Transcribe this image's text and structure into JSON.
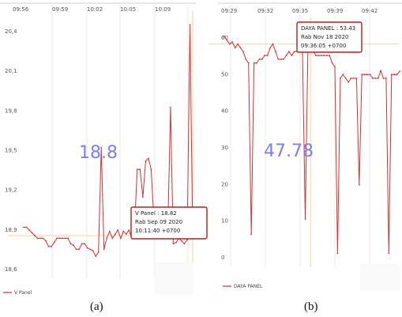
{
  "chart_data": [
    {
      "id": "a",
      "type": "line",
      "caption": "(a)",
      "x_ticks": [
        "09:56",
        "09:59",
        "10:02",
        "10:05",
        "10:09"
      ],
      "y_ticks": [
        "20,4",
        "20,1",
        "19,8",
        "19,5",
        "19,2",
        "18,9",
        "18,6"
      ],
      "ylim": [
        18.55,
        20.45
      ],
      "center_value": "18.8",
      "tooltip": [
        "V Panel : 18.82",
        "Rab Sep 09 2020",
        "10:11:40 +0700"
      ],
      "legend": "V Panel",
      "line_color": "#d93030",
      "series": [
        {
          "values": [
            18.88,
            18.88,
            18.86,
            18.84,
            18.82,
            18.8,
            18.8,
            18.8,
            18.78,
            18.74,
            18.74,
            18.77,
            18.8,
            18.8,
            18.8,
            18.8,
            18.8,
            18.76,
            18.75,
            18.72,
            18.72,
            18.76,
            18.76,
            18.73,
            18.72,
            18.71,
            18.67,
            18.7,
            19.46,
            18.72,
            18.8,
            18.85,
            18.8,
            18.83,
            18.86,
            18.8,
            18.85,
            18.83,
            18.86,
            18.8,
            18.88,
            19.3,
            19.3,
            19.1,
            19.36,
            19.38,
            19.3,
            18.93,
            18.95,
            18.83,
            18.86,
            18.84,
            18.84,
            19.75,
            18.76,
            18.77,
            18.8,
            18.78,
            18.76,
            18.79,
            20.35,
            18.82
          ]
        }
      ]
    },
    {
      "id": "b",
      "type": "line",
      "caption": "(b)",
      "x_ticks": [
        "09:29",
        "09:32",
        "09:35",
        "09:39",
        "09:42"
      ],
      "y_ticks": [
        "60",
        "50",
        "40",
        "30",
        "20",
        "10",
        "0"
      ],
      "ylim": [
        -2,
        62
      ],
      "center_value": "47.78",
      "tooltip": [
        "DAYA PANEL : 53.43",
        "Rab Nov 18 2020",
        "09:36:05 +0700"
      ],
      "legend": "DAYA PANEL",
      "line_color": "#d93030",
      "series": [
        {
          "values": [
            57,
            56,
            55,
            55.5,
            54,
            55,
            54,
            53,
            51,
            50,
            5,
            50,
            50,
            51,
            51,
            52,
            52,
            54,
            55,
            53,
            51,
            51,
            51,
            52,
            53,
            52,
            53,
            53,
            53,
            53,
            9,
            54,
            55,
            53,
            52,
            52,
            52,
            52,
            52,
            52,
            50,
            49,
            0,
            46,
            47,
            46,
            45,
            46,
            46,
            46,
            18,
            47,
            47,
            47,
            47,
            46,
            46,
            46,
            48,
            46,
            46,
            0,
            47,
            47,
            47,
            47.78
          ]
        }
      ]
    }
  ]
}
